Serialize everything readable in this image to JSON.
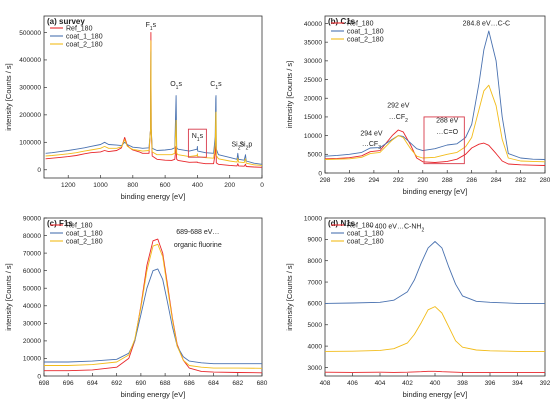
{
  "colors": {
    "Ref_180": "#e8262b",
    "coat_1_180": "#4a72b0",
    "coat_2_180": "#f2bc1a",
    "box": "#d83a4a",
    "axis": "#333333"
  },
  "chart_data": [
    {
      "id": "a",
      "type": "line",
      "title": "(a) survey",
      "xlabel": "binding energy [eV]",
      "ylabel": "intensity [Counts / s]",
      "xlim": [
        1350,
        0
      ],
      "ylim": [
        -30000,
        560000
      ],
      "xticks": [
        1200,
        1000,
        800,
        600,
        400,
        200,
        0
      ],
      "yticks": [
        0,
        100000,
        200000,
        300000,
        400000,
        500000
      ],
      "legend": [
        "Ref_180",
        "coat_1_180",
        "coat_2_180"
      ],
      "legend_position": "top-left",
      "annotations": [
        {
          "text": "F1s",
          "x": 688,
          "y": 520000
        },
        {
          "text": "O1s",
          "x": 532,
          "y": 305000
        },
        {
          "text": "C1s",
          "x": 285,
          "y": 305000
        },
        {
          "text": "N1s",
          "x": 400,
          "y": 115000,
          "boxed": true
        },
        {
          "text": "Si2s",
          "x": 150,
          "y": 85000
        },
        {
          "text": "Si2p",
          "x": 100,
          "y": 85000
        }
      ],
      "series": [
        {
          "name": "Ref_180",
          "x": [
            1340,
            1300,
            1250,
            1200,
            1150,
            1100,
            1060,
            1000,
            975,
            950,
            900,
            870,
            850,
            835,
            820,
            800,
            760,
            740,
            700,
            690,
            688,
            686,
            680,
            650,
            600,
            560,
            540,
            532,
            528,
            520,
            450,
            402,
            400,
            398,
            350,
            300,
            290,
            286,
            285,
            283,
            270,
            200,
            155,
            150,
            145,
            110,
            102,
            98,
            50,
            0
          ],
          "y": [
            40000,
            42000,
            45000,
            48000,
            52000,
            58000,
            62000,
            65000,
            70000,
            66000,
            70000,
            80000,
            118000,
            90000,
            80000,
            72000,
            65000,
            60000,
            60000,
            150000,
            500000,
            150000,
            50000,
            38000,
            35000,
            34000,
            38000,
            85000,
            38000,
            34000,
            27000,
            28000,
            28000,
            26000,
            22000,
            22000,
            60000,
            130000,
            140000,
            25000,
            20000,
            16000,
            14000,
            22000,
            14000,
            13000,
            20000,
            12000,
            10000,
            9000
          ]
        },
        {
          "name": "coat_1_180",
          "x": [
            1340,
            1300,
            1250,
            1200,
            1150,
            1100,
            1060,
            1000,
            975,
            950,
            900,
            870,
            850,
            835,
            820,
            800,
            760,
            740,
            700,
            690,
            688,
            686,
            680,
            650,
            600,
            560,
            540,
            532,
            528,
            520,
            450,
            402,
            400,
            398,
            350,
            300,
            290,
            286,
            285,
            283,
            270,
            200,
            155,
            150,
            145,
            110,
            102,
            98,
            50,
            0
          ],
          "y": [
            60000,
            62000,
            66000,
            70000,
            75000,
            80000,
            85000,
            92000,
            100000,
            92000,
            90000,
            88000,
            100000,
            92000,
            88000,
            82000,
            80000,
            78000,
            80000,
            150000,
            430000,
            150000,
            78000,
            70000,
            72000,
            75000,
            80000,
            270000,
            80000,
            75000,
            68000,
            75000,
            85000,
            68000,
            62000,
            60000,
            120000,
            260000,
            270000,
            75000,
            55000,
            45000,
            38000,
            60000,
            38000,
            35000,
            55000,
            32000,
            24000,
            20000
          ]
        },
        {
          "name": "coat_2_180",
          "x": [
            1340,
            1300,
            1250,
            1200,
            1150,
            1100,
            1060,
            1000,
            975,
            950,
            900,
            870,
            850,
            835,
            820,
            800,
            760,
            740,
            700,
            690,
            688,
            686,
            680,
            650,
            600,
            560,
            540,
            532,
            528,
            520,
            450,
            402,
            400,
            398,
            350,
            300,
            290,
            286,
            285,
            283,
            270,
            200,
            155,
            150,
            145,
            110,
            102,
            98,
            50,
            0
          ],
          "y": [
            50000,
            52000,
            55000,
            58000,
            62000,
            68000,
            72000,
            78000,
            85000,
            78000,
            78000,
            84000,
            110000,
            86000,
            80000,
            74000,
            70000,
            68000,
            70000,
            150000,
            470000,
            150000,
            65000,
            55000,
            55000,
            55000,
            60000,
            180000,
            60000,
            55000,
            48000,
            52000,
            58000,
            48000,
            44000,
            42000,
            90000,
            200000,
            210000,
            52000,
            40000,
            32000,
            28000,
            42000,
            28000,
            26000,
            40000,
            24000,
            18000,
            16000
          ]
        }
      ]
    },
    {
      "id": "b",
      "type": "line",
      "title": "(b) C1s",
      "xlabel": "binding energy [eV]",
      "ylabel": "intensity [Counts / s]",
      "xlim": [
        298,
        280
      ],
      "ylim": [
        0,
        42000
      ],
      "xticks": [
        298,
        296,
        294,
        292,
        290,
        288,
        286,
        284,
        282,
        280
      ],
      "yticks": [
        0,
        5000,
        10000,
        15000,
        20000,
        25000,
        30000,
        35000,
        40000
      ],
      "legend": [
        "Ref_180",
        "coat_1_180",
        "coat_2_180"
      ],
      "legend_position": "top-left",
      "annotations": [
        {
          "text": "284.8 eV…C-C",
          "x": 284.8,
          "y": 39500
        },
        {
          "text": "292 eV",
          "x": 292.0,
          "y": 17500
        },
        {
          "text": "…CF2",
          "x": 292.0,
          "y": 14500
        },
        {
          "text": "294 eV",
          "x": 294.2,
          "y": 10000
        },
        {
          "text": "…CF3",
          "x": 294.2,
          "y": 7200
        },
        {
          "text": "288 eV",
          "x": 288.0,
          "y": 13500
        },
        {
          "text": "…C=O",
          "x": 288.0,
          "y": 10500
        }
      ],
      "series": [
        {
          "name": "Ref_180",
          "x": [
            298,
            297,
            296,
            295,
            294.3,
            293.5,
            292.5,
            292,
            291.6,
            291,
            290.5,
            290,
            289,
            288,
            287.2,
            286.5,
            286,
            285.4,
            285,
            284.6,
            284,
            283.5,
            283,
            282,
            281,
            280
          ],
          "y": [
            3800,
            3900,
            4100,
            4600,
            5700,
            6000,
            10000,
            11500,
            11000,
            7500,
            4000,
            3000,
            2800,
            3100,
            3700,
            5000,
            6700,
            7700,
            8000,
            7400,
            5200,
            3200,
            2400,
            2200,
            2100,
            2000
          ]
        },
        {
          "name": "coat_1_180",
          "x": [
            298,
            297,
            296,
            295,
            294.3,
            293.5,
            292.5,
            292,
            291.6,
            291,
            290.5,
            290,
            289,
            288,
            287.2,
            286.5,
            286,
            285.4,
            285,
            284.6,
            284,
            283.5,
            283,
            282,
            281,
            280
          ],
          "y": [
            4500,
            4700,
            5000,
            5500,
            6700,
            6800,
            9000,
            10000,
            9800,
            8000,
            6500,
            6000,
            6500,
            7500,
            7800,
            9500,
            13000,
            24000,
            33000,
            38000,
            30000,
            15000,
            5200,
            4000,
            3700,
            3600
          ]
        },
        {
          "name": "coat_2_180",
          "x": [
            298,
            297,
            296,
            295,
            294.3,
            293.5,
            292.5,
            292,
            291.6,
            291,
            290.5,
            290,
            289,
            288,
            287.2,
            286.5,
            286,
            285.4,
            285,
            284.6,
            284,
            283.5,
            283,
            282,
            281,
            280
          ],
          "y": [
            3600,
            3700,
            3800,
            4200,
            5200,
            5500,
            8800,
            10000,
            9500,
            6500,
            4500,
            4000,
            4200,
            5000,
            5500,
            7000,
            9500,
            17000,
            22000,
            23500,
            18000,
            9000,
            4000,
            3200,
            3100,
            3000
          ]
        }
      ]
    },
    {
      "id": "c",
      "type": "line",
      "title": "(c) F1s",
      "xlabel": "binding energy [eV]",
      "ylabel": "intensity [Counts / s]",
      "xlim": [
        698,
        680
      ],
      "ylim": [
        0,
        90000
      ],
      "xticks": [
        698,
        696,
        694,
        692,
        690,
        688,
        686,
        684,
        682,
        680
      ],
      "yticks": [
        0,
        10000,
        20000,
        30000,
        40000,
        50000,
        60000,
        70000,
        80000,
        90000
      ],
      "legend": [
        "Ref_180",
        "coat_1_180",
        "coat_2_180"
      ],
      "legend_position": "top-left",
      "annotations": [
        {
          "text": "689-688 eV…",
          "x": 685.3,
          "y": 81000
        },
        {
          "text": "organic fluorine",
          "x": 685.3,
          "y": 73500
        }
      ],
      "series": [
        {
          "name": "Ref_180",
          "x": [
            698,
            696,
            694,
            692,
            691,
            690.5,
            690,
            689.5,
            689,
            688.6,
            688.2,
            687.8,
            687.4,
            687,
            686.5,
            686,
            685,
            684,
            682,
            680
          ],
          "y": [
            3000,
            3000,
            3500,
            5000,
            10000,
            20000,
            40000,
            63000,
            77000,
            78000,
            70000,
            52000,
            33000,
            18000,
            9000,
            4500,
            2600,
            2200,
            2000,
            1800
          ]
        },
        {
          "name": "coat_1_180",
          "x": [
            698,
            696,
            694,
            692,
            691,
            690.5,
            690,
            689.5,
            689,
            688.6,
            688.2,
            687.8,
            687.4,
            687,
            686.5,
            686,
            685,
            684,
            682,
            680
          ],
          "y": [
            8000,
            8000,
            8500,
            9500,
            13000,
            20000,
            35000,
            50000,
            60000,
            61000,
            55000,
            42000,
            28000,
            17000,
            11000,
            8500,
            7500,
            7000,
            7000,
            7000
          ]
        },
        {
          "name": "coat_2_180",
          "x": [
            698,
            696,
            694,
            692,
            691,
            690.5,
            690,
            689.5,
            689,
            688.6,
            688.2,
            687.8,
            687.4,
            687,
            686.5,
            686,
            685,
            684,
            682,
            680
          ],
          "y": [
            6000,
            6000,
            6500,
            8000,
            12000,
            21000,
            39000,
            60000,
            74000,
            75000,
            68000,
            50000,
            32000,
            17000,
            9000,
            6000,
            5000,
            4500,
            4500,
            4400
          ]
        }
      ]
    },
    {
      "id": "d",
      "type": "line",
      "title": "(d) N1s",
      "xlabel": "binding energy [eV]",
      "ylabel": "intensity [Counts / s]",
      "xlim": [
        408,
        392
      ],
      "ylim": [
        2600,
        10000
      ],
      "xticks": [
        408,
        406,
        404,
        402,
        400,
        398,
        396,
        394,
        392
      ],
      "yticks": [
        3000,
        4000,
        5000,
        6000,
        7000,
        8000,
        9000,
        10000
      ],
      "legend": [
        "Ref_180",
        "coat_1_180",
        "coat_2_180"
      ],
      "legend_position": "top-left",
      "annotations": [
        {
          "text": "~ 400 eV…C-NH2",
          "x": 402.8,
          "y": 9500
        }
      ],
      "series": [
        {
          "name": "Ref_180",
          "x": [
            408,
            406,
            404,
            403,
            402,
            401.5,
            401,
            400.5,
            400,
            399.5,
            399,
            398.5,
            398,
            397,
            396,
            394,
            392
          ],
          "y": [
            2780,
            2770,
            2780,
            2770,
            2780,
            2790,
            2800,
            2820,
            2820,
            2800,
            2790,
            2780,
            2770,
            2770,
            2760,
            2760,
            2760
          ]
        },
        {
          "name": "coat_1_180",
          "x": [
            408,
            406,
            404,
            403,
            402,
            401.5,
            401,
            400.5,
            400,
            399.5,
            399,
            398.5,
            398,
            397,
            396,
            394,
            392
          ],
          "y": [
            6000,
            6020,
            6050,
            6150,
            6550,
            7100,
            7900,
            8600,
            8900,
            8600,
            7700,
            6900,
            6350,
            6100,
            6050,
            6000,
            6000
          ]
        },
        {
          "name": "coat_2_180",
          "x": [
            408,
            406,
            404,
            403,
            402,
            401.5,
            401,
            400.5,
            400,
            399.5,
            399,
            398.5,
            398,
            397,
            396,
            394,
            392
          ],
          "y": [
            3750,
            3760,
            3800,
            3880,
            4150,
            4550,
            5100,
            5700,
            5850,
            5550,
            4900,
            4250,
            3950,
            3820,
            3780,
            3750,
            3750
          ]
        }
      ]
    }
  ]
}
